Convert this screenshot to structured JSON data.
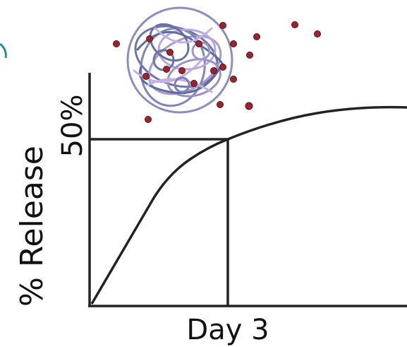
{
  "axis_labels": {
    "y": "% Release",
    "y_marker": "50%",
    "x_marker": "Day 3"
  }
}
